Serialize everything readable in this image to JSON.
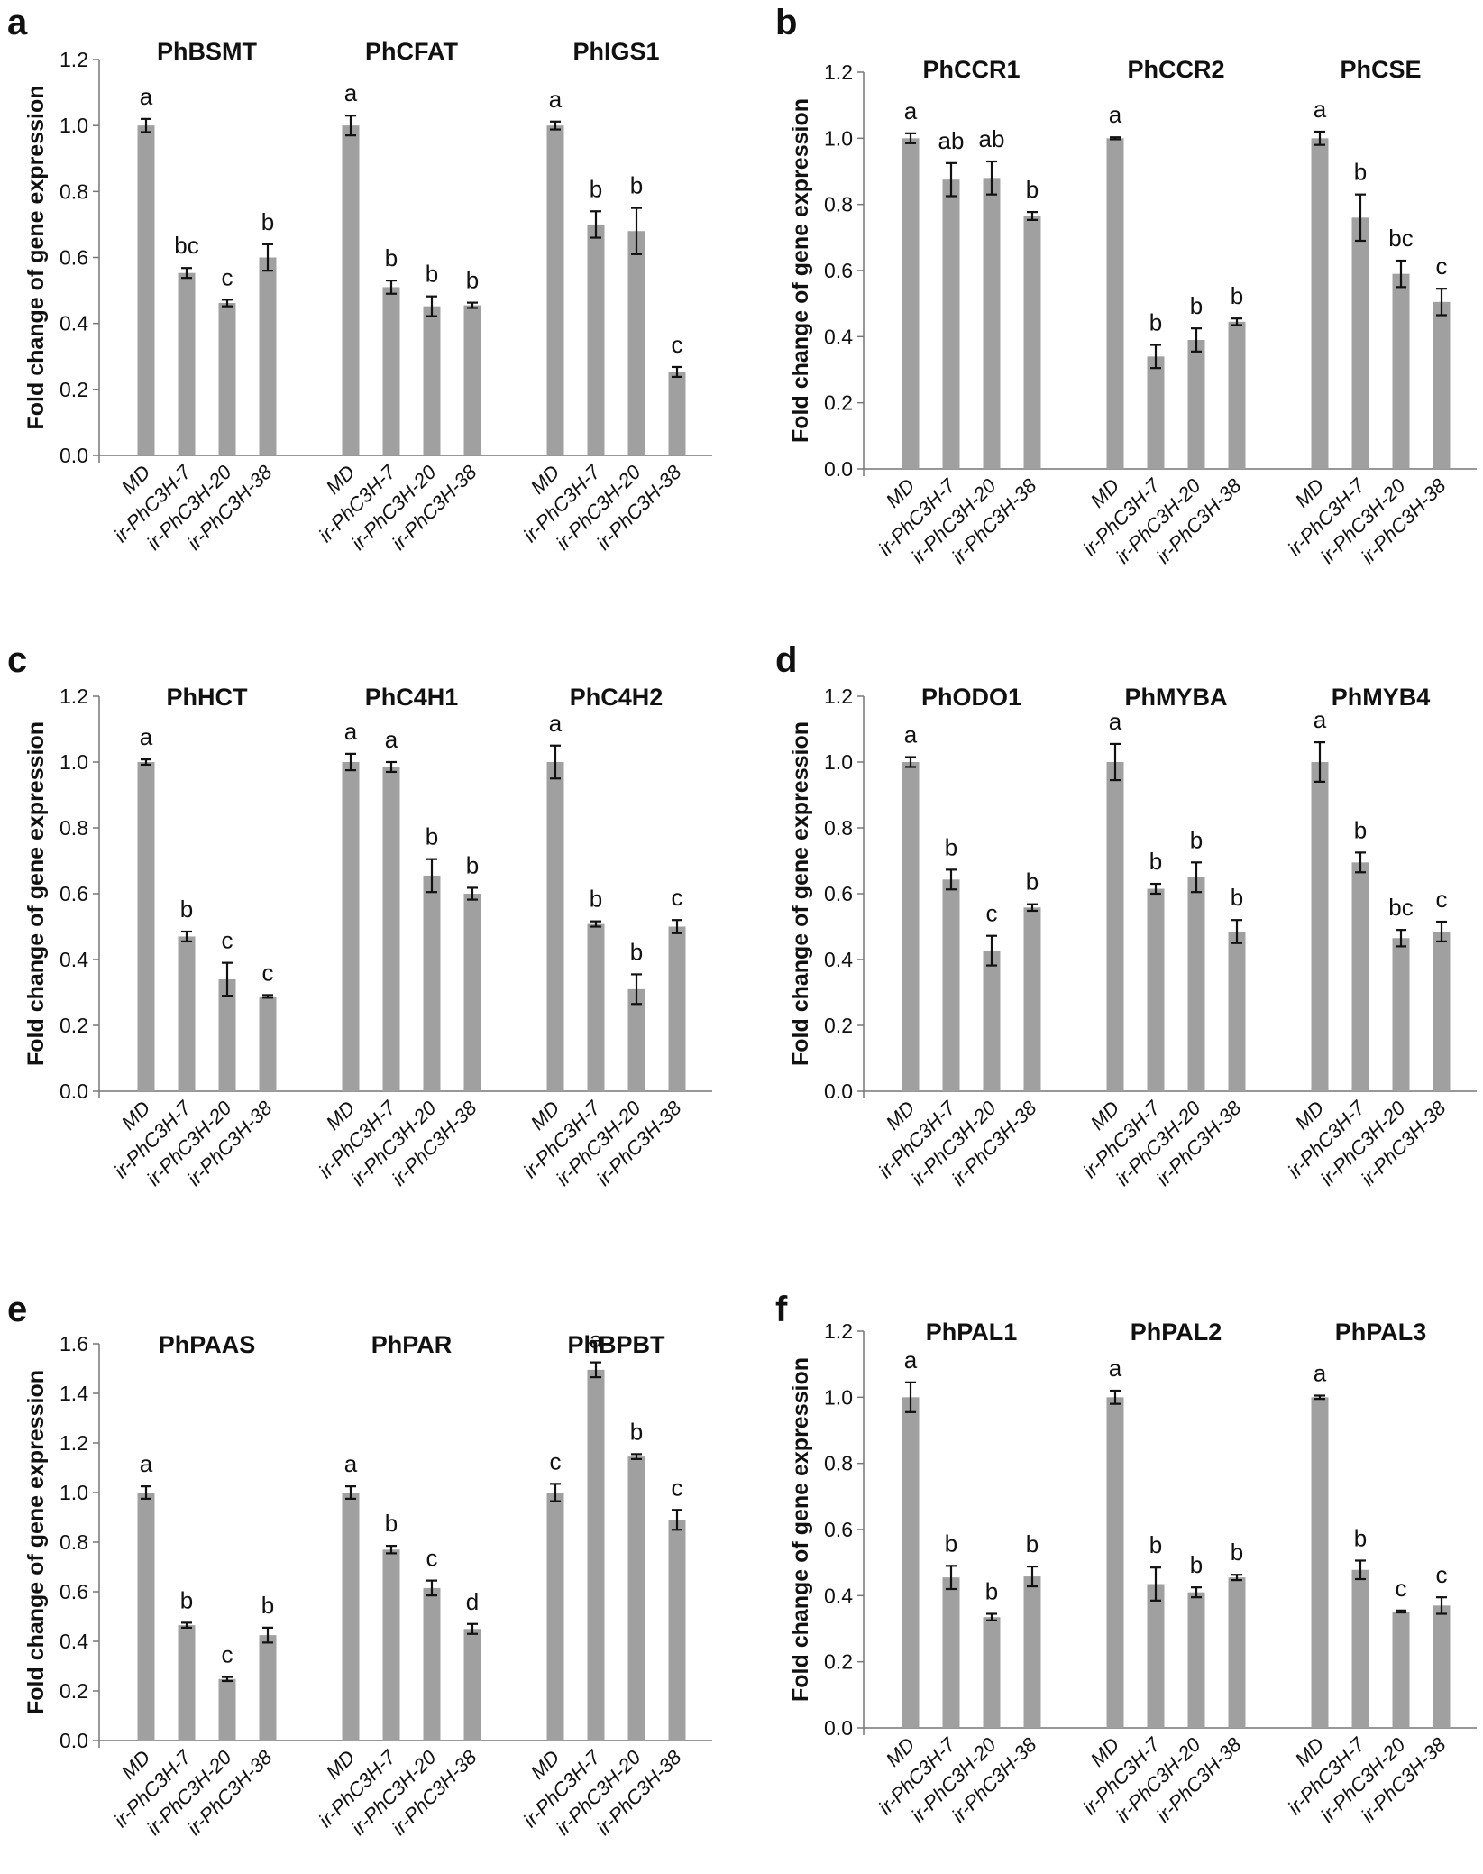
{
  "groups": [
    "MD",
    "ir-PhC3H-7",
    "ir-PhC3H-20",
    "ir-PhC3H-38"
  ],
  "ylabel": "Fold change of gene expression",
  "colors": {
    "bar": "#a0a0a0",
    "error_bar": "#111111",
    "axis": "#777777"
  },
  "chart_data": [
    {
      "panel": "a",
      "type": "bar",
      "ylabel": "Fold change of gene expression",
      "ylim": [
        0,
        1.2
      ],
      "yticks": [
        "0.0",
        "0.2",
        "0.4",
        "0.6",
        "0.8",
        "1.0",
        "1.2"
      ],
      "genes": [
        {
          "name": "PhBSMT",
          "values": [
            1.0,
            0.553,
            0.462,
            0.6
          ],
          "errors": [
            0.02,
            0.015,
            0.01,
            0.04
          ],
          "letters": [
            "a",
            "bc",
            "c",
            "b"
          ]
        },
        {
          "name": "PhCFAT",
          "values": [
            1.0,
            0.51,
            0.452,
            0.455
          ],
          "errors": [
            0.03,
            0.02,
            0.03,
            0.008
          ],
          "letters": [
            "a",
            "b",
            "b",
            "b"
          ]
        },
        {
          "name": "PhIGS1",
          "values": [
            1.0,
            0.7,
            0.68,
            0.253
          ],
          "errors": [
            0.012,
            0.04,
            0.07,
            0.015
          ],
          "letters": [
            "a",
            "b",
            "b",
            "c"
          ]
        }
      ]
    },
    {
      "panel": "b",
      "type": "bar",
      "ylabel": "Fold change of gene expression",
      "ylim": [
        0,
        1.2
      ],
      "yticks": [
        "0.0",
        "0.2",
        "0.4",
        "0.6",
        "0.8",
        "1.0",
        "1.2"
      ],
      "genes": [
        {
          "name": "PhCCR1",
          "values": [
            1.0,
            0.875,
            0.88,
            0.765
          ],
          "errors": [
            0.015,
            0.05,
            0.05,
            0.012
          ],
          "letters": [
            "a",
            "ab",
            "ab",
            "b"
          ]
        },
        {
          "name": "PhCCR2",
          "values": [
            1.0,
            0.34,
            0.39,
            0.445
          ],
          "errors": [
            0.003,
            0.035,
            0.035,
            0.01
          ],
          "letters": [
            "a",
            "b",
            "b",
            "b"
          ]
        },
        {
          "name": "PhCSE",
          "values": [
            1.0,
            0.76,
            0.59,
            0.505
          ],
          "errors": [
            0.02,
            0.07,
            0.04,
            0.04
          ],
          "letters": [
            "a",
            "b",
            "bc",
            "c"
          ]
        }
      ]
    },
    {
      "panel": "c",
      "type": "bar",
      "ylabel": "Fold change of gene expression",
      "ylim": [
        0,
        1.2
      ],
      "yticks": [
        "0.0",
        "0.2",
        "0.4",
        "0.6",
        "0.8",
        "1.0",
        "1.2"
      ],
      "genes": [
        {
          "name": "PhHCT",
          "values": [
            1.0,
            0.47,
            0.34,
            0.288
          ],
          "errors": [
            0.008,
            0.015,
            0.05,
            0.004
          ],
          "letters": [
            "a",
            "b",
            "c",
            "c"
          ]
        },
        {
          "name": "PhC4H1",
          "values": [
            1.0,
            0.985,
            0.655,
            0.6
          ],
          "errors": [
            0.025,
            0.015,
            0.05,
            0.018
          ],
          "letters": [
            "a",
            "a",
            "b",
            "b"
          ]
        },
        {
          "name": "PhC4H2",
          "values": [
            1.0,
            0.508,
            0.31,
            0.5
          ],
          "errors": [
            0.05,
            0.008,
            0.045,
            0.02
          ],
          "letters": [
            "a",
            "b",
            "b",
            "c"
          ]
        }
      ]
    },
    {
      "panel": "d",
      "type": "bar",
      "ylabel": "Fold change of gene expression",
      "ylim": [
        0,
        1.2
      ],
      "yticks": [
        "0.0",
        "0.2",
        "0.4",
        "0.6",
        "0.8",
        "1.0",
        "1.2"
      ],
      "genes": [
        {
          "name": "PhODO1",
          "values": [
            1.0,
            0.643,
            0.427,
            0.558
          ],
          "errors": [
            0.015,
            0.03,
            0.045,
            0.01
          ],
          "letters": [
            "a",
            "b",
            "c",
            "b"
          ]
        },
        {
          "name": "PhMYBA",
          "values": [
            1.0,
            0.615,
            0.65,
            0.485
          ],
          "errors": [
            0.055,
            0.015,
            0.045,
            0.035
          ],
          "letters": [
            "a",
            "b",
            "b",
            "b"
          ]
        },
        {
          "name": "PhMYB4",
          "values": [
            1.0,
            0.695,
            0.465,
            0.485
          ],
          "errors": [
            0.06,
            0.03,
            0.025,
            0.03
          ],
          "letters": [
            "a",
            "b",
            "bc",
            "c"
          ]
        }
      ]
    },
    {
      "panel": "e",
      "type": "bar",
      "ylabel": "Fold change of gene expression",
      "ylim": [
        0,
        1.6
      ],
      "yticks": [
        "0.0",
        "0.2",
        "0.4",
        "0.6",
        "0.8",
        "1.0",
        "1.2",
        "1.4",
        "1.6"
      ],
      "genes": [
        {
          "name": "PhPAAS",
          "values": [
            1.0,
            0.465,
            0.248,
            0.425
          ],
          "errors": [
            0.025,
            0.01,
            0.008,
            0.03
          ],
          "letters": [
            "a",
            "b",
            "c",
            "b"
          ]
        },
        {
          "name": "PhPAR",
          "values": [
            1.0,
            0.77,
            0.615,
            0.45
          ],
          "errors": [
            0.025,
            0.015,
            0.03,
            0.02
          ],
          "letters": [
            "a",
            "b",
            "c",
            "d"
          ]
        },
        {
          "name": "PhBPBT",
          "values": [
            1.0,
            1.495,
            1.145,
            0.89
          ],
          "errors": [
            0.035,
            0.03,
            0.01,
            0.04
          ],
          "letters": [
            "c",
            "a",
            "b",
            "c"
          ]
        }
      ]
    },
    {
      "panel": "f",
      "type": "bar",
      "ylabel": "Fold change of gene expression",
      "ylim": [
        0,
        1.2
      ],
      "yticks": [
        "0.0",
        "0.2",
        "0.4",
        "0.6",
        "0.8",
        "1.0",
        "1.2"
      ],
      "genes": [
        {
          "name": "PhPAL1",
          "values": [
            1.0,
            0.455,
            0.335,
            0.458
          ],
          "errors": [
            0.045,
            0.035,
            0.01,
            0.03
          ],
          "letters": [
            "a",
            "b",
            "b",
            "b"
          ]
        },
        {
          "name": "PhPAL2",
          "values": [
            1.0,
            0.435,
            0.41,
            0.455
          ],
          "errors": [
            0.02,
            0.05,
            0.015,
            0.008
          ],
          "letters": [
            "a",
            "b",
            "b",
            "b"
          ]
        },
        {
          "name": "PhPAL3",
          "values": [
            1.0,
            0.478,
            0.352,
            0.37
          ],
          "errors": [
            0.005,
            0.028,
            0.003,
            0.025
          ],
          "letters": [
            "a",
            "b",
            "c",
            "c"
          ]
        }
      ]
    }
  ]
}
